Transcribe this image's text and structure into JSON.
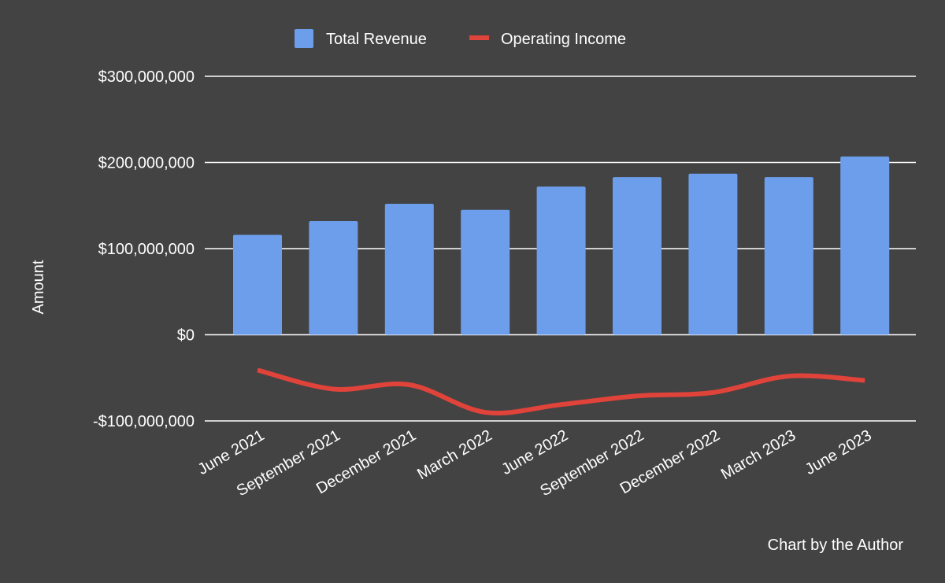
{
  "chart_data": {
    "type": "bar",
    "categories": [
      "June 2021",
      "September 2021",
      "December 2021",
      "March 2022",
      "June 2022",
      "September 2022",
      "December 2022",
      "March 2023",
      "June 2023"
    ],
    "series": [
      {
        "name": "Total Revenue",
        "type": "bar",
        "color": "#6d9eeb",
        "values": [
          116000000,
          132000000,
          152000000,
          145000000,
          172000000,
          183000000,
          187000000,
          183000000,
          207000000
        ]
      },
      {
        "name": "Operating Income",
        "type": "line",
        "color": "#e0433a",
        "values": [
          -41000000,
          -63000000,
          -58000000,
          -90000000,
          -81000000,
          -71000000,
          -67000000,
          -48000000,
          -53000000
        ]
      }
    ],
    "ylabel": "Amount",
    "xlabel": "",
    "ylim": [
      -100000000,
      300000000
    ],
    "yticks": [
      300000000,
      200000000,
      100000000,
      0,
      -100000000
    ],
    "ytick_labels": [
      "$300,000,000",
      "$200,000,000",
      "$100,000,000",
      "$0",
      "-$100,000,000"
    ],
    "legend_position": "top-center",
    "grid": true,
    "note": "Chart by the Author"
  }
}
